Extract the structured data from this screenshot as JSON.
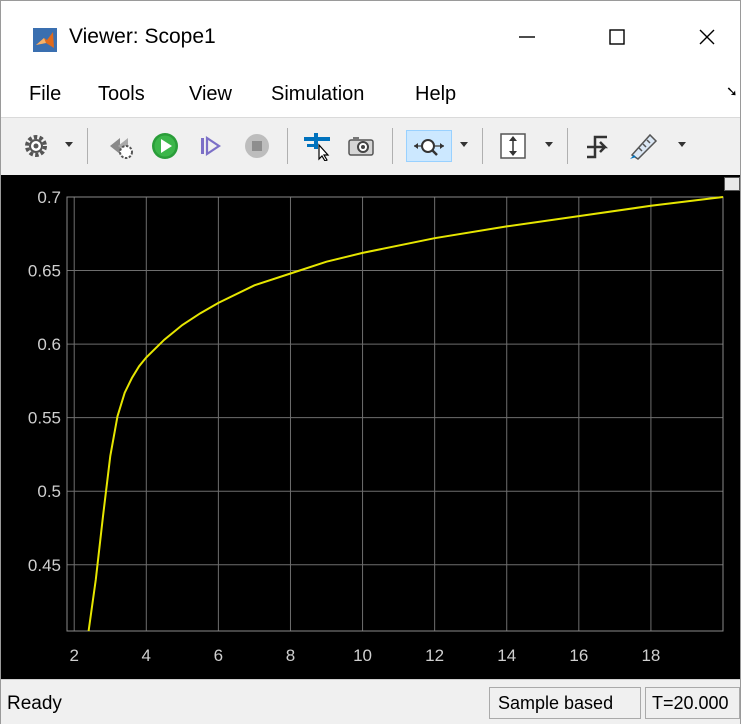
{
  "window": {
    "title": "Viewer: Scope1",
    "minimize_symbol": "—",
    "maximize_symbol": "☐",
    "close_symbol": "✕"
  },
  "menu": {
    "items": [
      "File",
      "Tools",
      "View",
      "Simulation",
      "Help"
    ],
    "overflow_icon": "corner-arrow-icon"
  },
  "toolbar": {
    "icons": [
      "gear-settings-icon",
      "step-back-icon",
      "run-icon",
      "step-forward-icon",
      "stop-icon",
      "signal-select-icon",
      "camera-snapshot-icon",
      "zoom-icon",
      "scale-axes-icon",
      "triggers-icon",
      "measurement-ruler-icon"
    ],
    "active_icon": "zoom-icon",
    "colors": {
      "run": "#2a9d39",
      "stop": "#a6a6a6",
      "signal": "#0072bd"
    }
  },
  "chart_data": {
    "type": "line",
    "title": "",
    "xlabel": "",
    "ylabel": "",
    "xlim": [
      1.8,
      20
    ],
    "ylim": [
      0.405,
      0.7
    ],
    "x_ticks": [
      2,
      4,
      6,
      8,
      10,
      12,
      14,
      16,
      18
    ],
    "y_ticks": [
      0.45,
      0.5,
      0.55,
      0.6,
      0.65,
      0.7
    ],
    "grid": true,
    "background": "#000000",
    "line_color": "#e6e600",
    "series": [
      {
        "x": [
          2.4,
          2.6,
          2.8,
          3.0,
          3.2,
          3.4,
          3.6,
          3.8,
          4.0,
          4.5,
          5.0,
          5.5,
          6.0,
          7.0,
          8.0,
          9.0,
          10.0,
          12.0,
          14.0,
          16.0,
          18.0,
          20.0
        ],
        "values": [
          0.405,
          0.44,
          0.483,
          0.524,
          0.551,
          0.567,
          0.577,
          0.585,
          0.591,
          0.603,
          0.613,
          0.621,
          0.628,
          0.64,
          0.648,
          0.656,
          0.662,
          0.672,
          0.68,
          0.687,
          0.694,
          0.7
        ]
      }
    ]
  },
  "status": {
    "state": "Ready",
    "mode": "Sample based",
    "time": "T=20.000"
  }
}
